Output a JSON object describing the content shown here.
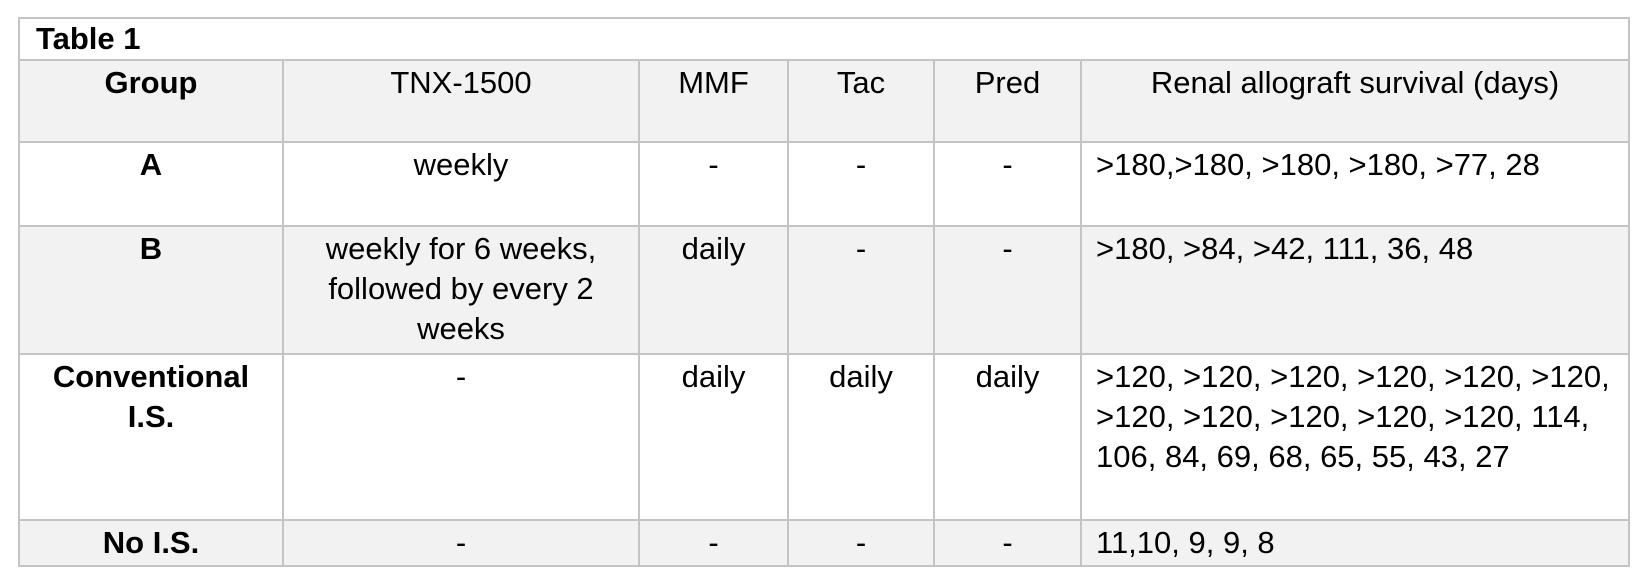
{
  "title": "Table 1",
  "headers": [
    "Group",
    "TNX-1500",
    "MMF",
    "Tac",
    "Pred",
    "Renal allograft survival (days)"
  ],
  "rows": [
    {
      "group": "A",
      "tnx": "weekly",
      "mmf": "-",
      "tac": "-",
      "pred": "-",
      "survival": ">180,>180, >180, >180, >77, 28"
    },
    {
      "group": "B",
      "tnx": "weekly for 6 weeks, followed by every 2 weeks",
      "mmf": "daily",
      "tac": "-",
      "pred": "-",
      "survival": ">180, >84, >42, 111, 36, 48"
    },
    {
      "group": "Conventional I.S.",
      "tnx": "-",
      "mmf": "daily",
      "tac": "daily",
      "pred": "daily",
      "survival": ">120, >120, >120, >120, >120, >120, >120, >120, >120, >120, >120, 114, 106, 84, 69, 68, 65, 55, 43, 27"
    },
    {
      "group": "No I.S.",
      "tnx": "-",
      "mmf": "-",
      "tac": "-",
      "pred": "-",
      "survival": "11,10, 9, 9, 8"
    }
  ]
}
